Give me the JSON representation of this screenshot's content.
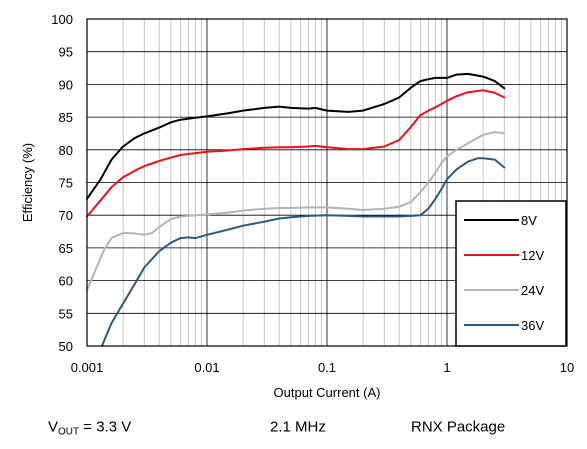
{
  "chart_data": {
    "type": "line",
    "title": "",
    "xlabel": "Output Current (A)",
    "ylabel": "Efficiency (%)",
    "xscale": "log",
    "xlim": [
      0.001,
      10
    ],
    "ylim": [
      50,
      100
    ],
    "grid": true,
    "legend_position": "lower-right",
    "x_ticks": [
      {
        "value": 0.001,
        "label": "0.001"
      },
      {
        "value": 0.01,
        "label": "0.01"
      },
      {
        "value": 0.1,
        "label": "0.1"
      },
      {
        "value": 1,
        "label": "1"
      },
      {
        "value": 10,
        "label": "10"
      }
    ],
    "y_ticks": [
      {
        "value": 50,
        "label": "50"
      },
      {
        "value": 55,
        "label": "55"
      },
      {
        "value": 60,
        "label": "60"
      },
      {
        "value": 65,
        "label": "65"
      },
      {
        "value": 70,
        "label": "70"
      },
      {
        "value": 75,
        "label": "75"
      },
      {
        "value": 80,
        "label": "80"
      },
      {
        "value": 85,
        "label": "85"
      },
      {
        "value": 90,
        "label": "90"
      },
      {
        "value": 95,
        "label": "95"
      },
      {
        "value": 100,
        "label": "100"
      }
    ],
    "series": [
      {
        "name": "8V",
        "color": "#000000",
        "x": [
          0.001,
          0.0013,
          0.0016,
          0.002,
          0.0025,
          0.003,
          0.004,
          0.005,
          0.006,
          0.008,
          0.01,
          0.015,
          0.02,
          0.03,
          0.04,
          0.05,
          0.07,
          0.08,
          0.1,
          0.15,
          0.2,
          0.3,
          0.4,
          0.5,
          0.6,
          0.7,
          0.8,
          0.9,
          1.0,
          1.2,
          1.5,
          2.0,
          2.5,
          3.0
        ],
        "y": [
          72.5,
          75.5,
          78.5,
          80.5,
          81.8,
          82.5,
          83.4,
          84.2,
          84.6,
          84.9,
          85.1,
          85.6,
          86.0,
          86.4,
          86.6,
          86.4,
          86.3,
          86.4,
          86.0,
          85.8,
          86.0,
          87.0,
          88.0,
          89.5,
          90.5,
          90.8,
          91.0,
          91.0,
          91.0,
          91.5,
          91.6,
          91.2,
          90.5,
          89.4
        ]
      },
      {
        "name": "12V",
        "color": "#e8141a",
        "x": [
          0.001,
          0.0013,
          0.0016,
          0.002,
          0.0025,
          0.003,
          0.004,
          0.005,
          0.006,
          0.008,
          0.01,
          0.015,
          0.02,
          0.03,
          0.04,
          0.05,
          0.07,
          0.08,
          0.1,
          0.15,
          0.2,
          0.3,
          0.4,
          0.5,
          0.6,
          0.7,
          0.8,
          0.9,
          1.0,
          1.2,
          1.5,
          2.0,
          2.5,
          3.0
        ],
        "y": [
          69.8,
          72.3,
          74.3,
          75.8,
          76.8,
          77.5,
          78.3,
          78.8,
          79.2,
          79.5,
          79.7,
          79.9,
          80.1,
          80.3,
          80.4,
          80.4,
          80.5,
          80.6,
          80.4,
          80.1,
          80.1,
          80.5,
          81.5,
          83.5,
          85.3,
          86.0,
          86.5,
          87.0,
          87.5,
          88.2,
          88.8,
          89.1,
          88.7,
          88.0
        ]
      },
      {
        "name": "24V",
        "color": "#b4b4b4",
        "x": [
          0.001,
          0.0012,
          0.0014,
          0.0016,
          0.002,
          0.0025,
          0.003,
          0.0035,
          0.004,
          0.005,
          0.006,
          0.008,
          0.01,
          0.015,
          0.02,
          0.03,
          0.04,
          0.05,
          0.07,
          0.08,
          0.1,
          0.15,
          0.2,
          0.3,
          0.4,
          0.5,
          0.6,
          0.7,
          0.8,
          0.9,
          1.0,
          1.2,
          1.5,
          2.0,
          2.5,
          3.0
        ],
        "y": [
          58.5,
          62.0,
          64.8,
          66.5,
          67.3,
          67.2,
          67.0,
          67.3,
          68.2,
          69.4,
          69.8,
          70.0,
          70.1,
          70.4,
          70.7,
          71.0,
          71.1,
          71.1,
          71.2,
          71.2,
          71.2,
          71.0,
          70.8,
          71.0,
          71.3,
          72.0,
          73.5,
          75.0,
          76.5,
          78.0,
          79.0,
          80.0,
          81.0,
          82.3,
          82.7,
          82.5
        ]
      },
      {
        "name": "36V",
        "color": "#2a5b7e",
        "x": [
          0.00133,
          0.0016,
          0.002,
          0.0025,
          0.003,
          0.004,
          0.005,
          0.006,
          0.007,
          0.008,
          0.01,
          0.015,
          0.02,
          0.03,
          0.04,
          0.05,
          0.07,
          0.1,
          0.15,
          0.2,
          0.3,
          0.4,
          0.5,
          0.6,
          0.7,
          0.8,
          0.9,
          1.0,
          1.2,
          1.5,
          1.8,
          2.0,
          2.5,
          3.0
        ],
        "y": [
          50.0,
          53.5,
          56.5,
          59.5,
          62.0,
          64.5,
          65.8,
          66.5,
          66.6,
          66.5,
          67.0,
          67.8,
          68.4,
          69.0,
          69.5,
          69.7,
          69.9,
          70.0,
          69.9,
          69.8,
          69.8,
          69.8,
          69.9,
          70.0,
          71.0,
          72.5,
          74.0,
          75.5,
          77.0,
          78.2,
          78.7,
          78.7,
          78.5,
          77.3
        ]
      }
    ]
  },
  "captions": {
    "vout_symbol": "V",
    "vout_subscript": "OUT",
    "vout_value": " = 3.3 V",
    "frequency": "2.1 MHz",
    "package": "RNX Package"
  }
}
